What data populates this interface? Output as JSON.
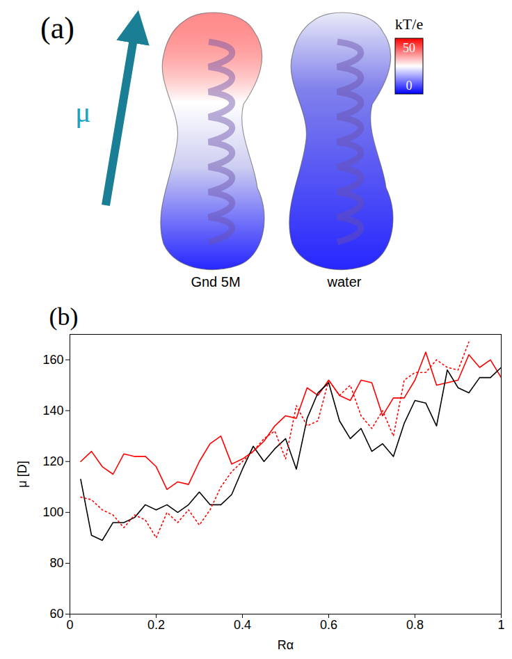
{
  "panel_a": {
    "label": "(a)",
    "arrow_label": "μ",
    "molecules": [
      "Gnd 5M",
      "water"
    ],
    "colorbar": {
      "title": "kT/e",
      "range": [
        0,
        50
      ],
      "ticks": [
        0,
        50
      ],
      "colors": [
        "#0000ff",
        "#ffffff",
        "#ff0000"
      ]
    }
  },
  "chart_data": {
    "type": "line",
    "panel_label": "(b)",
    "x_label": "Rα",
    "y_label": "μ [D]",
    "x": [
      0.025,
      0.05,
      0.075,
      0.1,
      0.125,
      0.15,
      0.175,
      0.2,
      0.225,
      0.25,
      0.275,
      0.3,
      0.325,
      0.35,
      0.375,
      0.4,
      0.425,
      0.45,
      0.475,
      0.5,
      0.525,
      0.55,
      0.575,
      0.6,
      0.625,
      0.65,
      0.675,
      0.7,
      0.725,
      0.75,
      0.775,
      0.8,
      0.825,
      0.85,
      0.875,
      0.9,
      0.925,
      0.95,
      0.975,
      1.0
    ],
    "series": [
      {
        "color": "#ff0000",
        "line_style": "solid",
        "values": [
          120,
          124,
          118,
          115,
          123,
          122,
          122,
          118,
          109,
          112,
          111,
          120,
          127,
          130,
          119,
          121,
          124,
          128,
          134,
          138,
          137,
          149,
          146,
          152,
          146,
          144,
          152,
          151,
          138,
          145,
          145,
          152,
          163,
          150,
          151,
          152,
          162,
          157,
          160,
          153
        ]
      },
      {
        "color": "#000000",
        "line_style": "solid",
        "values": [
          113,
          91,
          89,
          96,
          96,
          98,
          103,
          101,
          103,
          100,
          103,
          108,
          103,
          103,
          107,
          117,
          126,
          120,
          125,
          129,
          117,
          137,
          147,
          151,
          136,
          129,
          133,
          124,
          127,
          122,
          135,
          144,
          143,
          134,
          156,
          149,
          147,
          153,
          153,
          157
        ]
      },
      {
        "color": "#ff0000",
        "line_style": "dotted",
        "values": [
          106,
          105,
          101,
          99,
          94,
          99,
          97,
          90,
          100,
          96,
          101,
          95,
          101,
          110,
          116,
          120,
          124,
          129,
          132,
          121,
          142,
          134,
          136,
          152,
          146,
          150,
          138,
          133,
          140,
          130,
          152,
          155,
          155,
          160,
          157,
          156,
          167,
          null,
          null,
          null
        ]
      }
    ],
    "xlim": [
      0,
      1
    ],
    "xticks": [
      0,
      0.2,
      0.4,
      0.6,
      0.8,
      1
    ],
    "ylim": [
      60,
      170
    ],
    "yticks": [
      60,
      80,
      100,
      120,
      140,
      160
    ],
    "grid": false
  }
}
